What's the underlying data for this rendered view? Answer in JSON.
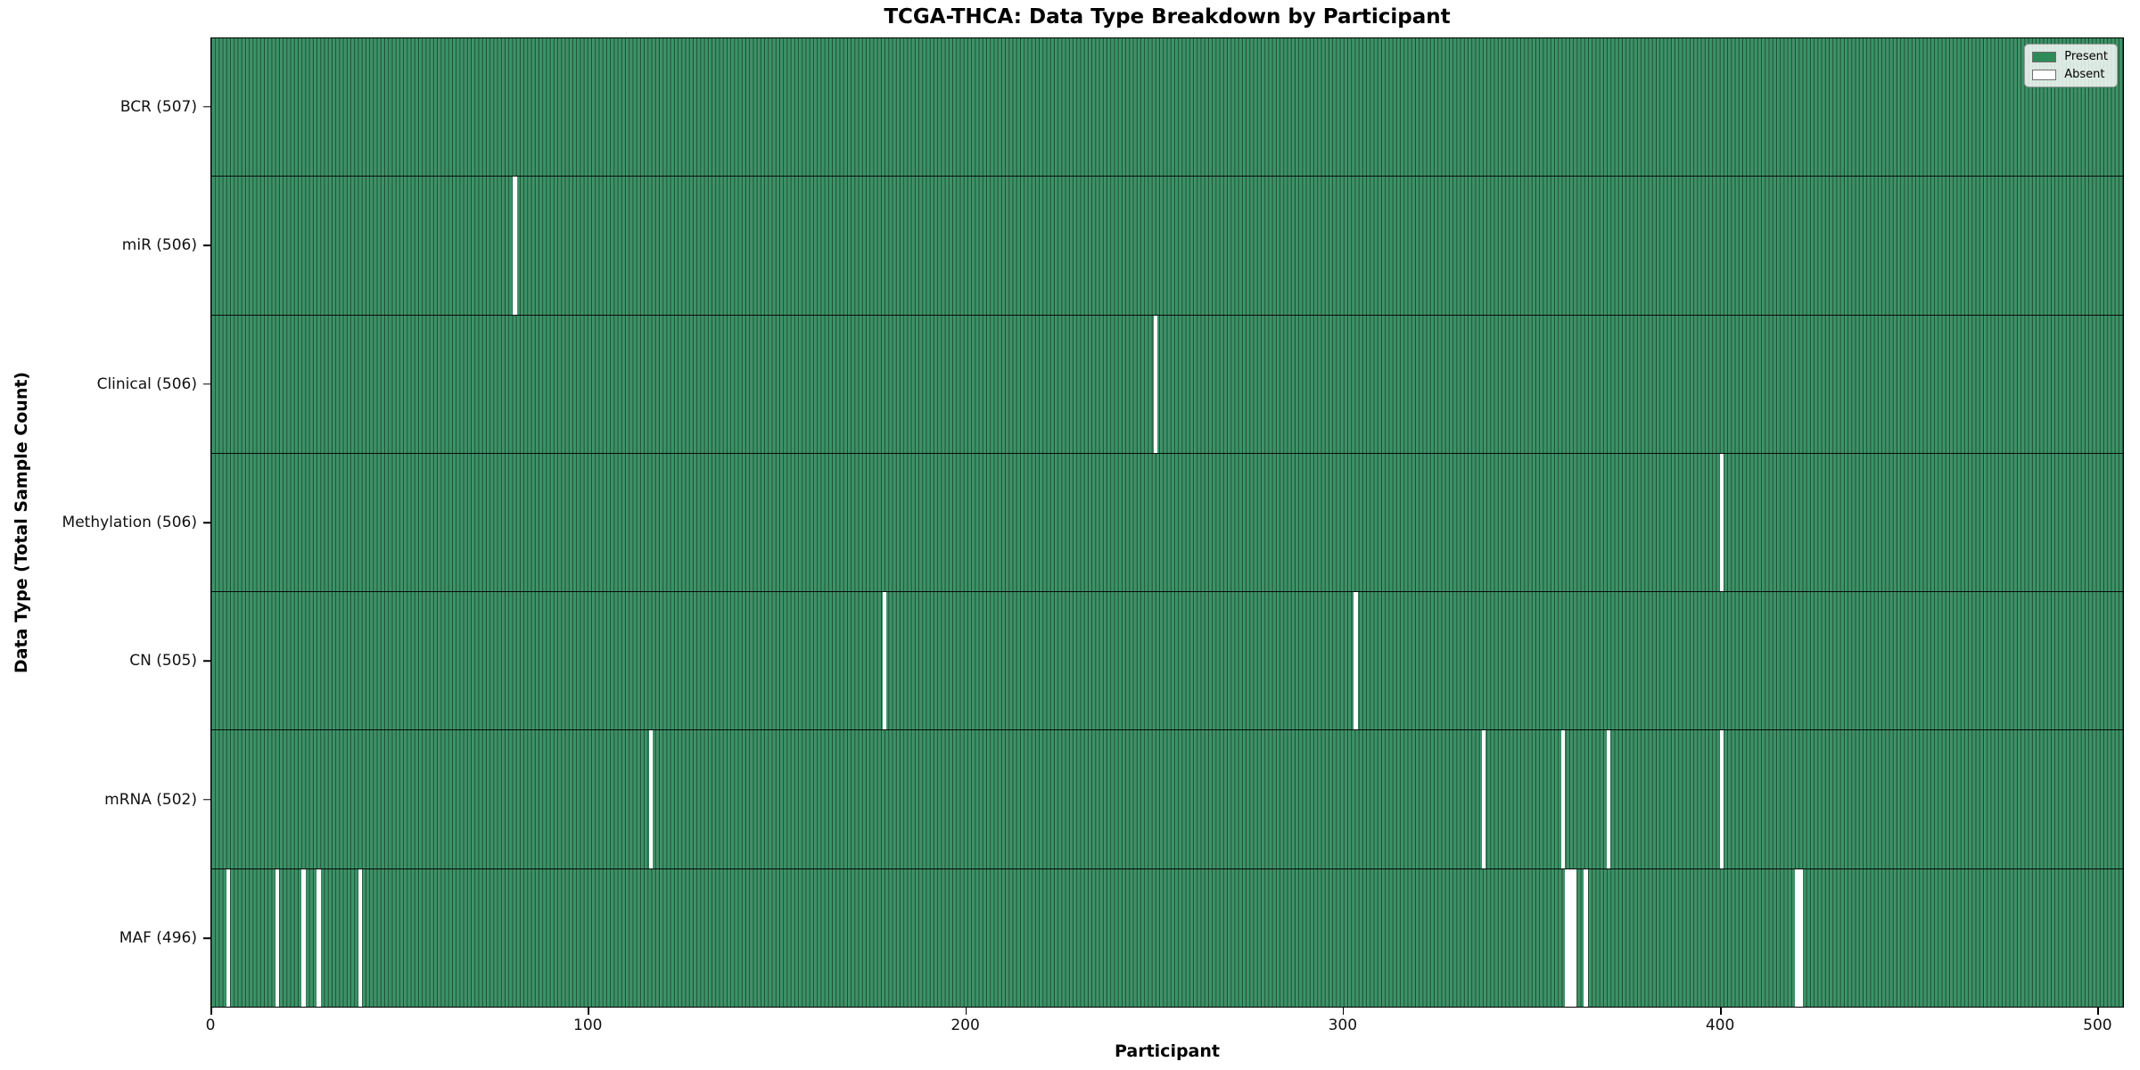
{
  "chart_data": {
    "type": "heatmap",
    "title": "TCGA-THCA: Data Type Breakdown by Participant",
    "xlabel": "Participant",
    "ylabel": "Data Type (Total Sample Count)",
    "n_participants": 507,
    "x_ticks": [
      0,
      100,
      200,
      300,
      400,
      500
    ],
    "grid": false,
    "legend": {
      "position": "upper right",
      "entries": [
        {
          "label": "Present",
          "color": "#2e8b57"
        },
        {
          "label": "Absent",
          "color": "#ffffff"
        }
      ]
    },
    "colors": {
      "present_fill": "#3a9166",
      "bar_edge": "#1b4a2e",
      "absent_fill": "#ffffff",
      "row_divider": "#0a0a0a"
    },
    "rows": [
      {
        "label": "BCR (507)",
        "data_type": "BCR",
        "total_samples": 507,
        "absent_participants": []
      },
      {
        "label": "miR (506)",
        "data_type": "miR",
        "total_samples": 506,
        "absent_participants": [
          80
        ]
      },
      {
        "label": "Clinical (506)",
        "data_type": "Clinical",
        "total_samples": 506,
        "absent_participants": [
          250
        ]
      },
      {
        "label": "Methylation (506)",
        "data_type": "Methylation",
        "total_samples": 506,
        "absent_participants": [
          400
        ]
      },
      {
        "label": "CN (505)",
        "data_type": "CN",
        "total_samples": 505,
        "absent_participants": [
          178,
          303
        ]
      },
      {
        "label": "mRNA (502)",
        "data_type": "mRNA",
        "total_samples": 502,
        "absent_participants": [
          116,
          337,
          358,
          370,
          400
        ]
      },
      {
        "label": "MAF (496)",
        "data_type": "MAF",
        "total_samples": 496,
        "absent_participants": [
          4,
          17,
          24,
          28,
          39,
          359,
          360,
          361,
          364,
          420,
          421
        ]
      }
    ]
  }
}
